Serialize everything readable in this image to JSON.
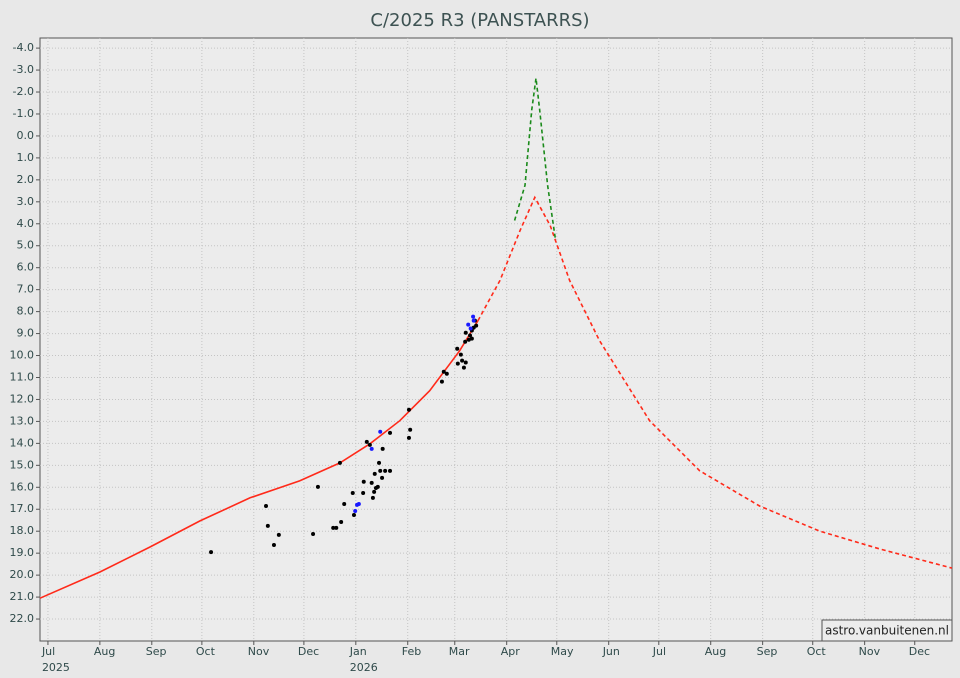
{
  "chart_data": {
    "type": "line",
    "title": "C/2025 R3 (PANSTARRS)",
    "xlim": [
      2025.483,
      2026.976
    ],
    "ylim": [
      -4.46,
      23.0
    ],
    "y_inverted": true,
    "grid": true,
    "xticks": [
      {
        "value": 2025.496,
        "label": "Jul"
      },
      {
        "value": 2025.581,
        "label": "Aug"
      },
      {
        "value": 2025.666,
        "label": "Sep"
      },
      {
        "value": 2025.748,
        "label": "Oct"
      },
      {
        "value": 2025.833,
        "label": "Nov"
      },
      {
        "value": 2025.915,
        "label": "Dec"
      },
      {
        "value": 2026.0,
        "label": "Jan"
      },
      {
        "value": 2026.085,
        "label": "Feb"
      },
      {
        "value": 2026.162,
        "label": "Mar"
      },
      {
        "value": 2026.247,
        "label": "Apr"
      },
      {
        "value": 2026.329,
        "label": "May"
      },
      {
        "value": 2026.414,
        "label": "Jun"
      },
      {
        "value": 2026.496,
        "label": "Jul"
      },
      {
        "value": 2026.581,
        "label": "Aug"
      },
      {
        "value": 2026.666,
        "label": "Sep"
      },
      {
        "value": 2026.748,
        "label": "Oct"
      },
      {
        "value": 2026.833,
        "label": "Nov"
      },
      {
        "value": 2026.915,
        "label": "Dec"
      }
    ],
    "year_labels": [
      {
        "value": 2025.496,
        "label": "2025"
      },
      {
        "value": 2026.0,
        "label": "2026"
      }
    ],
    "yticks": [
      {
        "value": -4,
        "label": "-4.0"
      },
      {
        "value": -3,
        "label": "-3.0"
      },
      {
        "value": -2,
        "label": "-2.0"
      },
      {
        "value": -1,
        "label": "-1.0"
      },
      {
        "value": 0,
        "label": "0.0"
      },
      {
        "value": 1,
        "label": "1.0"
      },
      {
        "value": 2,
        "label": "2.0"
      },
      {
        "value": 3,
        "label": "3.0"
      },
      {
        "value": 4,
        "label": "4.0"
      },
      {
        "value": 5,
        "label": "5.0"
      },
      {
        "value": 6,
        "label": "6.0"
      },
      {
        "value": 7,
        "label": "7.0"
      },
      {
        "value": 8,
        "label": "8.0"
      },
      {
        "value": 9,
        "label": "9.0"
      },
      {
        "value": 10,
        "label": "10.0"
      },
      {
        "value": 11,
        "label": "11.0"
      },
      {
        "value": 12,
        "label": "12.0"
      },
      {
        "value": 13,
        "label": "13.0"
      },
      {
        "value": 14,
        "label": "14.0"
      },
      {
        "value": 15,
        "label": "15.0"
      },
      {
        "value": 16,
        "label": "16.0"
      },
      {
        "value": 17,
        "label": "17.0"
      },
      {
        "value": 18,
        "label": "18.0"
      },
      {
        "value": 19,
        "label": "19.0"
      },
      {
        "value": 20,
        "label": "20.0"
      },
      {
        "value": 21,
        "label": "21.0"
      },
      {
        "value": 22,
        "label": "22.0"
      }
    ],
    "annotation": "astro.vanbuitenen.nl",
    "series": [
      {
        "kind": "line",
        "style": "solid",
        "color": "#ff2a1a",
        "x": [
          2025.483,
          2025.581,
          2025.663,
          2025.745,
          2025.827,
          2025.908,
          2025.974,
          2026.023,
          2026.072,
          2026.121,
          2026.17,
          2026.2
        ],
        "values": [
          21.05,
          19.86,
          18.72,
          17.53,
          16.48,
          15.71,
          14.89,
          14.02,
          12.97,
          11.6,
          9.78,
          8.41
        ]
      },
      {
        "kind": "line",
        "style": "dashed",
        "color": "#ff2a1a",
        "x": [
          2026.2,
          2026.236,
          2026.269,
          2026.293,
          2026.318,
          2026.35,
          2026.399,
          2026.481,
          2026.563,
          2026.661,
          2026.759,
          2026.858,
          2026.976
        ],
        "values": [
          8.41,
          6.58,
          4.3,
          2.8,
          4.07,
          6.58,
          9.32,
          12.97,
          15.25,
          16.85,
          17.99,
          18.81,
          19.68
        ]
      },
      {
        "kind": "line",
        "style": "dashed",
        "color": "#1a8a1a",
        "x": [
          2026.26,
          2026.277,
          2026.288,
          2026.295,
          2026.301,
          2026.314,
          2026.327
        ],
        "values": [
          3.85,
          2.25,
          -1.17,
          -2.63,
          -1.17,
          2.25,
          4.76
        ]
      },
      {
        "kind": "scatter",
        "color": "#000000",
        "x": [
          2025.763,
          2025.853,
          2025.856,
          2025.866,
          2025.874,
          2025.93,
          2025.938,
          2025.963,
          2025.968,
          2025.974,
          2025.976,
          2025.981,
          2025.995,
          2025.997,
          2026.012,
          2026.013,
          2026.018,
          2026.023,
          2026.026,
          2026.028,
          2026.03,
          2026.031,
          2026.033,
          2026.036,
          2026.038,
          2026.04,
          2026.043,
          2026.044,
          2026.048,
          2026.056,
          2026.056,
          2026.087,
          2026.087,
          2026.089,
          2026.141,
          2026.144,
          2026.149,
          2026.166,
          2026.167,
          2026.172,
          2026.174,
          2026.177,
          2026.179,
          2026.18,
          2026.18,
          2026.185,
          2026.187,
          2026.19,
          2026.193,
          2026.195,
          2026.197,
          2026.19
        ],
        "values": [
          18.95,
          16.85,
          17.76,
          18.63,
          18.17,
          18.13,
          15.98,
          17.85,
          17.85,
          14.89,
          17.58,
          16.76,
          16.26,
          17.26,
          16.26,
          15.75,
          13.93,
          14.07,
          15.8,
          16.48,
          16.21,
          15.39,
          16.03,
          15.98,
          14.89,
          15.25,
          15.57,
          14.25,
          15.25,
          15.25,
          13.52,
          12.47,
          13.75,
          13.38,
          11.19,
          10.74,
          10.83,
          9.69,
          10.37,
          9.96,
          10.23,
          10.55,
          9.37,
          10.32,
          8.96,
          9.28,
          9.09,
          8.86,
          8.73,
          8.41,
          8.64,
          9.23
        ]
      },
      {
        "kind": "scatter",
        "color": "#1a1aff",
        "x": [
          2025.999,
          2026.002,
          2026.005,
          2026.026,
          2026.04,
          2026.184,
          2026.188,
          2026.192,
          2026.193
        ],
        "values": [
          17.08,
          16.8,
          16.76,
          14.25,
          13.47,
          8.59,
          8.77,
          8.23,
          8.41
        ]
      }
    ]
  }
}
